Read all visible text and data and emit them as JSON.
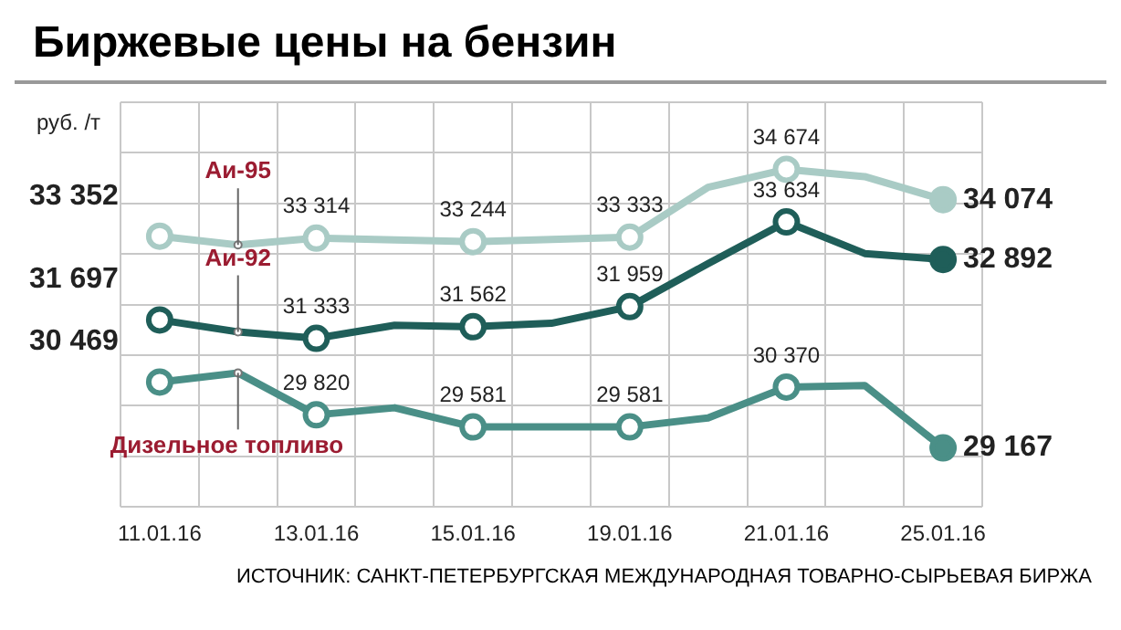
{
  "chart_data": {
    "type": "line",
    "title": "Биржевые цены на бензин",
    "ylabel": "руб. /т",
    "categories": [
      "11.01.16",
      null,
      "13.01.16",
      null,
      "15.01.16",
      null,
      "19.01.16",
      null,
      "21.01.16",
      null,
      "25.01.16"
    ],
    "series": [
      {
        "name": "Аи-95",
        "color": "#a9cbc5",
        "values": [
          33352,
          33180,
          33314,
          33280,
          33244,
          33290,
          33333,
          34320,
          34674,
          34530,
          34074
        ],
        "value_labels": [
          "33 352",
          null,
          "33 314",
          null,
          "33 244",
          null,
          "33 333",
          null,
          "34 674",
          null,
          "34 074"
        ]
      },
      {
        "name": "Аи-92",
        "color": "#1f5e59",
        "values": [
          31697,
          31460,
          31333,
          31590,
          31562,
          31630,
          31959,
          32810,
          33634,
          33010,
          32892
        ],
        "value_labels": [
          "31 697",
          null,
          "31 333",
          null,
          "31 562",
          null,
          "31 959",
          null,
          "33 634",
          null,
          "32 892"
        ]
      },
      {
        "name": "Дизельное топливо",
        "color": "#4a8f87",
        "values": [
          30469,
          30650,
          29820,
          29960,
          29581,
          29581,
          29581,
          29760,
          30370,
          30400,
          29167
        ],
        "value_labels": [
          "30 469",
          null,
          "29 820",
          null,
          "29 581",
          null,
          "29 581",
          null,
          "30 370",
          null,
          "29 167"
        ]
      }
    ],
    "annotations": [
      "ИСТОЧНИК: САНКТ-ПЕТЕРБУРГСКАЯ МЕЖДУНАРОДНАЯ ТОВАРНО-СЫРЬЕВАЯ БИРЖА"
    ],
    "grid": true,
    "legend": false,
    "marker": "circle",
    "line_style": "solid"
  }
}
